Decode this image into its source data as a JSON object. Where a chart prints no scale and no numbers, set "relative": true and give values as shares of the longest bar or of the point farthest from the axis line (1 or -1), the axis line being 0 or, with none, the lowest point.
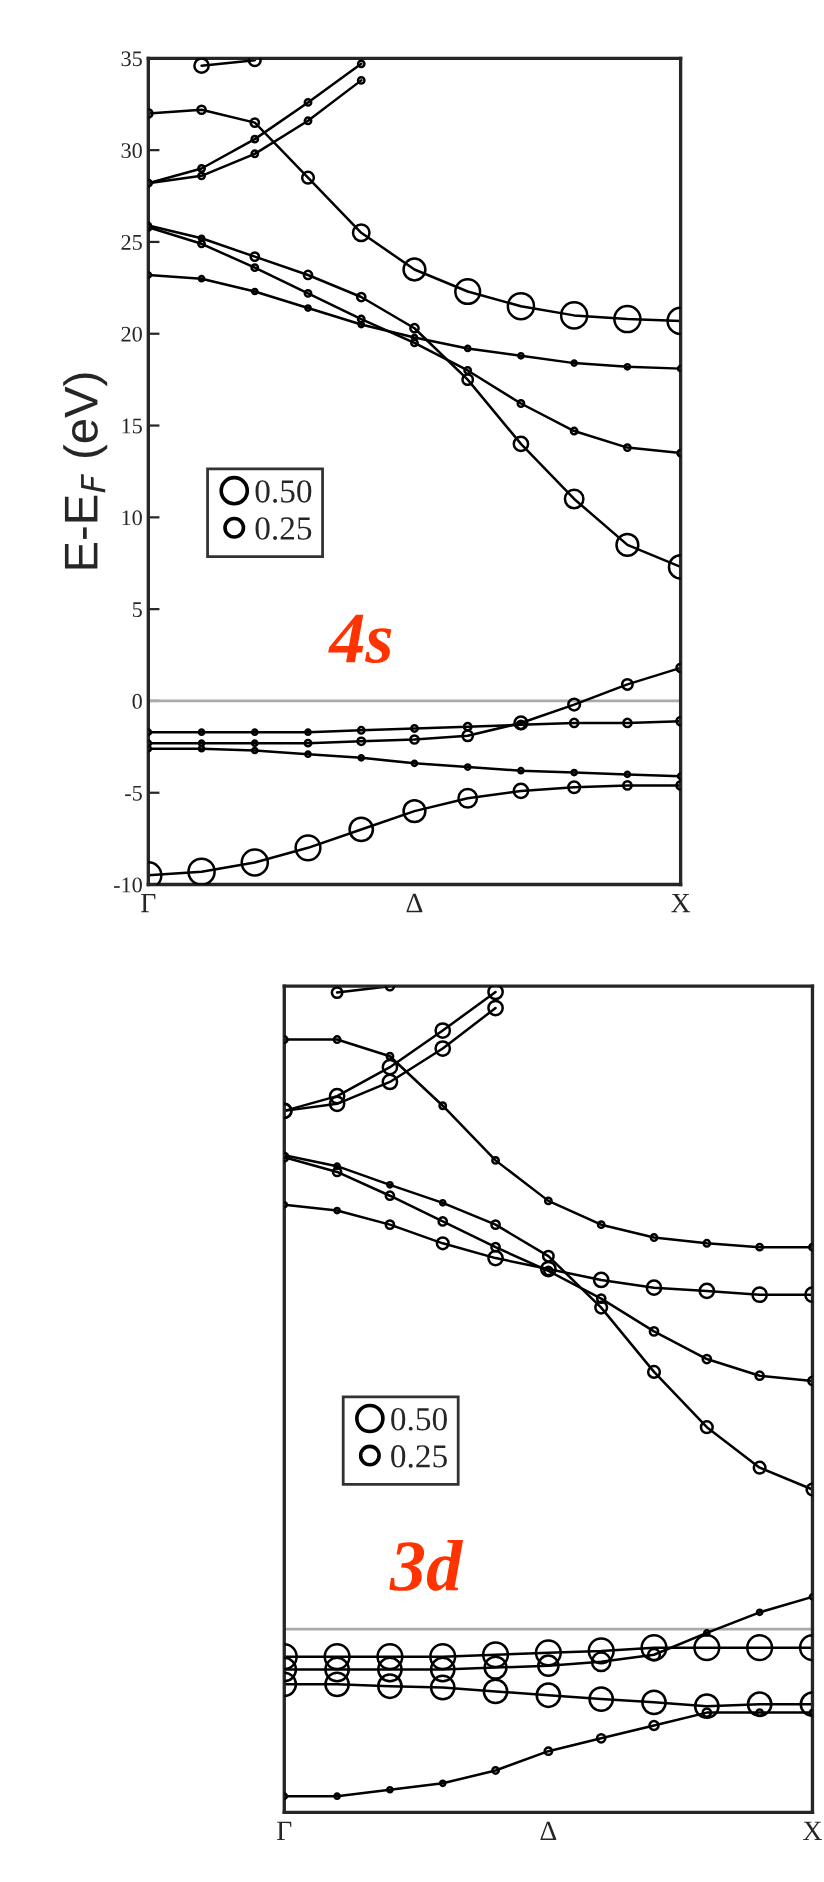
{
  "chart_data": [
    {
      "type": "bubble",
      "ylabel": "E-E$_{F}$ (eV)",
      "annotations": [
        "4s"
      ],
      "categories": [
        "Γ",
        null,
        null,
        null,
        null,
        "Δ",
        null,
        null,
        null,
        null,
        "X"
      ],
      "ylim": [
        -10,
        35
      ],
      "yticks": [
        -10,
        -5,
        0,
        5,
        10,
        15,
        20,
        25,
        30,
        35
      ],
      "ref_lines": [
        {
          "axis": "y",
          "value": 0,
          "color": "#aaaaaa"
        }
      ],
      "size_legend": [
        {
          "value": 0.5,
          "label": "0.50"
        },
        {
          "value": 0.25,
          "label": "0.25"
        }
      ],
      "marker": "circle",
      "series": [
        {
          "type": "line",
          "marker": "none",
          "color": "#000000",
          "values": [
            -9.5,
            -9.3,
            -8.8,
            -8.0,
            -7.0,
            -6.0,
            -5.3,
            -4.9,
            -4.7,
            -4.6,
            -4.6
          ]
        },
        {
          "type": "bubble",
          "color": "#000000",
          "values": [
            -9.5,
            -9.3,
            -8.8,
            -8.0,
            -7.0,
            -6.0,
            -5.3,
            -4.9,
            -4.7,
            -4.6,
            -4.6
          ],
          "sizes": [
            0.5,
            0.5,
            0.5,
            0.45,
            0.4,
            0.35,
            0.25,
            0.15,
            0.1,
            0.05,
            0.05
          ]
        },
        {
          "type": "line",
          "marker": "none",
          "color": "#000000",
          "values": [
            -2.6,
            -2.6,
            -2.7,
            -2.9,
            -3.1,
            -3.4,
            -3.6,
            -3.8,
            -3.9,
            -4.0,
            -4.1
          ]
        },
        {
          "type": "bubble",
          "color": "#000000",
          "values": [
            -2.6,
            -2.6,
            -2.7,
            -2.9,
            -3.1,
            -3.4,
            -3.6,
            -3.8,
            -3.9,
            -4.0,
            -4.1
          ],
          "sizes": [
            0.02,
            0.02,
            0.02,
            0.02,
            0.02,
            0.02,
            0.02,
            0.02,
            0.02,
            0.02,
            0.02
          ]
        },
        {
          "type": "line",
          "marker": "none",
          "color": "#000000",
          "values": [
            -1.7,
            -1.7,
            -1.7,
            -1.7,
            -1.6,
            -1.5,
            -1.4,
            -1.3,
            -1.2,
            -1.2,
            -1.1
          ]
        },
        {
          "type": "bubble",
          "color": "#000000",
          "values": [
            -1.7,
            -1.7,
            -1.7,
            -1.7,
            -1.6,
            -1.5,
            -1.4,
            -1.3,
            -1.2,
            -1.2,
            -1.1
          ],
          "sizes": [
            0.02,
            0.02,
            0.02,
            0.02,
            0.03,
            0.03,
            0.04,
            0.05,
            0.05,
            0.05,
            0.05
          ]
        },
        {
          "type": "line",
          "marker": "none",
          "color": "#000000",
          "values": [
            -2.3,
            -2.3,
            -2.3,
            -2.3,
            -2.2,
            -2.1,
            -1.9,
            -1.2,
            -0.2,
            0.9,
            1.8
          ]
        },
        {
          "type": "bubble",
          "color": "#000000",
          "values": [
            -2.3,
            -2.3,
            -2.3,
            -2.3,
            -2.2,
            -2.1,
            -1.9,
            -1.2,
            -0.2,
            0.9,
            1.8
          ],
          "sizes": [
            0.02,
            0.02,
            0.02,
            0.03,
            0.04,
            0.05,
            0.08,
            0.12,
            0.1,
            0.08,
            0.05
          ]
        },
        {
          "type": "line",
          "marker": "none",
          "color": "#000000",
          "values": [
            23.2,
            23.0,
            22.3,
            21.4,
            20.5,
            19.8,
            19.2,
            18.8,
            18.4,
            18.2,
            18.1
          ]
        },
        {
          "type": "bubble",
          "color": "#000000",
          "values": [
            23.2,
            23.0,
            22.3,
            21.4,
            20.5,
            19.8,
            19.2,
            18.8,
            18.4,
            18.2,
            18.1
          ],
          "sizes": [
            0.02,
            0.02,
            0.02,
            0.02,
            0.02,
            0.02,
            0.02,
            0.02,
            0.02,
            0.02,
            0.02
          ]
        },
        {
          "type": "line",
          "marker": "none",
          "color": "#000000",
          "values": [
            25.8,
            24.9,
            23.6,
            22.2,
            20.8,
            19.5,
            18.0,
            16.2,
            14.7,
            13.8,
            13.5
          ]
        },
        {
          "type": "bubble",
          "color": "#000000",
          "values": [
            25.8,
            24.9,
            23.6,
            22.2,
            20.8,
            19.5,
            18.0,
            16.2,
            14.7,
            13.8,
            13.5
          ],
          "sizes": [
            0.03,
            0.03,
            0.03,
            0.03,
            0.03,
            0.03,
            0.03,
            0.03,
            0.03,
            0.03,
            0.03
          ]
        },
        {
          "type": "line",
          "marker": "none",
          "color": "#000000",
          "values": [
            25.9,
            25.2,
            24.2,
            23.2,
            22.0,
            20.3,
            17.5,
            14.0,
            11.0,
            8.5,
            7.3
          ]
        },
        {
          "type": "bubble",
          "color": "#000000",
          "values": [
            25.9,
            25.2,
            24.2,
            23.2,
            22.0,
            20.3,
            17.5,
            14.0,
            11.0,
            8.5,
            7.3
          ],
          "sizes": [
            0.02,
            0.02,
            0.05,
            0.05,
            0.05,
            0.05,
            0.08,
            0.15,
            0.25,
            0.35,
            0.4
          ]
        },
        {
          "type": "line",
          "marker": "none",
          "color": "#000000",
          "values": [
            32.0,
            32.2,
            31.5,
            28.5,
            25.5,
            23.5,
            22.3,
            21.5,
            21.0,
            20.8,
            20.7
          ]
        },
        {
          "type": "bubble",
          "color": "#000000",
          "values": [
            32.0,
            32.2,
            31.5,
            28.5,
            25.5,
            23.5,
            22.3,
            21.5,
            21.0,
            20.8,
            20.7
          ],
          "sizes": [
            0.05,
            0.05,
            0.05,
            0.1,
            0.2,
            0.35,
            0.45,
            0.5,
            0.5,
            0.5,
            0.5
          ]
        },
        {
          "type": "line",
          "marker": "none",
          "color": "#000000",
          "values": [
            28.2,
            29.0,
            30.6,
            32.6,
            34.7,
            null,
            null,
            null,
            null,
            null,
            null
          ]
        },
        {
          "type": "bubble",
          "color": "#000000",
          "values": [
            28.2,
            29.0,
            30.6,
            32.6,
            34.7,
            null,
            null,
            null,
            null,
            null,
            null
          ],
          "sizes": [
            0.03,
            0.03,
            0.03,
            0.03,
            0.03,
            null,
            null,
            null,
            null,
            null,
            null
          ]
        },
        {
          "type": "line",
          "marker": "none",
          "color": "#000000",
          "values": [
            28.2,
            28.6,
            29.8,
            31.6,
            33.8,
            null,
            null,
            null,
            null,
            null,
            null
          ]
        },
        {
          "type": "bubble",
          "color": "#000000",
          "values": [
            28.2,
            28.6,
            29.8,
            31.6,
            33.8,
            null,
            null,
            null,
            null,
            null,
            null
          ],
          "sizes": [
            0.03,
            0.03,
            0.03,
            0.03,
            0.03,
            null,
            null,
            null,
            null,
            null,
            null
          ]
        },
        {
          "type": "line",
          "marker": "none",
          "color": "#000000",
          "values": [
            null,
            34.6,
            34.9,
            null,
            null,
            null,
            null,
            null,
            null,
            null,
            null
          ]
        },
        {
          "type": "bubble",
          "color": "#000000",
          "values": [
            null,
            34.6,
            34.9,
            null,
            null,
            null,
            null,
            null,
            null,
            null,
            null
          ],
          "sizes": [
            null,
            0.15,
            0.1,
            null,
            null,
            null,
            null,
            null,
            null,
            null,
            null
          ]
        }
      ]
    },
    {
      "type": "bubble",
      "relative": true,
      "annotations": [
        "3d"
      ],
      "categories": [
        "Γ",
        null,
        null,
        null,
        null,
        "Δ",
        null,
        null,
        null,
        null,
        "X"
      ],
      "ref_lines": [
        {
          "axis": "y",
          "value": 0,
          "color": "#aaaaaa"
        }
      ],
      "size_legend": [
        {
          "value": 0.5,
          "label": "0.50"
        },
        {
          "value": 0.25,
          "label": "0.25"
        }
      ],
      "marker": "circle",
      "series": [
        {
          "type": "line",
          "marker": "none",
          "color": "#000000",
          "values": [
            -0.26,
            -0.26,
            -0.25,
            -0.24,
            -0.22,
            -0.19,
            -0.17,
            -0.15,
            -0.13,
            -0.13,
            -0.13
          ]
        },
        {
          "type": "bubble",
          "color": "#000000",
          "values": [
            -0.26,
            -0.26,
            -0.25,
            -0.24,
            -0.22,
            -0.19,
            -0.17,
            -0.15,
            -0.13,
            -0.13,
            -0.13
          ],
          "sizes": [
            0.02,
            0.02,
            0.02,
            0.02,
            0.03,
            0.04,
            0.05,
            0.06,
            0.05,
            0.03,
            0.02
          ]
        },
        {
          "type": "line",
          "marker": "none",
          "color": "#000000",
          "values": [
            -0.086,
            -0.086,
            -0.089,
            -0.091,
            -0.097,
            -0.103,
            -0.109,
            -0.114,
            -0.12,
            -0.117,
            -0.117
          ]
        },
        {
          "type": "bubble",
          "color": "#000000",
          "values": [
            -0.086,
            -0.086,
            -0.089,
            -0.091,
            -0.097,
            -0.103,
            -0.109,
            -0.114,
            -0.12,
            -0.117,
            -0.117
          ],
          "sizes": [
            0.4,
            0.4,
            0.4,
            0.4,
            0.4,
            0.4,
            0.4,
            0.4,
            0.4,
            0.4,
            0.4
          ]
        },
        {
          "type": "line",
          "marker": "none",
          "color": "#000000",
          "values": [
            -0.043,
            -0.043,
            -0.043,
            -0.043,
            -0.04,
            -0.037,
            -0.034,
            -0.029,
            -0.029,
            -0.029,
            -0.029
          ]
        },
        {
          "type": "bubble",
          "color": "#000000",
          "values": [
            -0.043,
            -0.043,
            -0.043,
            -0.043,
            -0.04,
            -0.037,
            -0.034,
            -0.029,
            -0.029,
            -0.029,
            -0.029
          ],
          "sizes": [
            0.45,
            0.45,
            0.45,
            0.45,
            0.45,
            0.45,
            0.45,
            0.45,
            0.45,
            0.45,
            0.45
          ]
        },
        {
          "type": "line",
          "marker": "none",
          "color": "#000000",
          "values": [
            -0.063,
            -0.063,
            -0.063,
            -0.063,
            -0.06,
            -0.057,
            -0.051,
            -0.04,
            -0.006,
            0.026,
            0.05
          ]
        },
        {
          "type": "bubble",
          "color": "#000000",
          "values": [
            -0.063,
            -0.063,
            -0.063,
            -0.063,
            -0.06,
            -0.057,
            -0.051,
            -0.04,
            -0.006,
            0.026,
            0.05
          ],
          "sizes": [
            0.4,
            0.4,
            0.4,
            0.4,
            0.35,
            0.3,
            0.25,
            0.1,
            0.02,
            0.02,
            0.02
          ]
        },
        {
          "type": "line",
          "marker": "none",
          "color": "#000000",
          "values": [
            0.66,
            0.651,
            0.629,
            0.6,
            0.577,
            0.56,
            0.543,
            0.531,
            0.526,
            0.52,
            0.52
          ]
        },
        {
          "type": "bubble",
          "color": "#000000",
          "values": [
            0.66,
            0.651,
            0.629,
            0.6,
            0.577,
            0.56,
            0.543,
            0.531,
            0.526,
            0.52,
            0.52
          ],
          "sizes": [
            0.02,
            0.02,
            0.05,
            0.1,
            0.15,
            0.15,
            0.15,
            0.15,
            0.15,
            0.15,
            0.15
          ]
        },
        {
          "type": "line",
          "marker": "none",
          "color": "#000000",
          "values": [
            0.734,
            0.711,
            0.674,
            0.634,
            0.594,
            0.557,
            0.514,
            0.463,
            0.42,
            0.394,
            0.386
          ]
        },
        {
          "type": "bubble",
          "color": "#000000",
          "values": [
            0.734,
            0.711,
            0.674,
            0.634,
            0.594,
            0.557,
            0.514,
            0.463,
            0.42,
            0.394,
            0.386
          ],
          "sizes": [
            0.05,
            0.05,
            0.05,
            0.05,
            0.05,
            0.05,
            0.05,
            0.05,
            0.05,
            0.05,
            0.05
          ]
        },
        {
          "type": "line",
          "marker": "none",
          "color": "#000000",
          "values": [
            0.737,
            0.72,
            0.691,
            0.663,
            0.629,
            0.58,
            0.5,
            0.4,
            0.314,
            0.251,
            0.217
          ]
        },
        {
          "type": "bubble",
          "color": "#000000",
          "values": [
            0.737,
            0.72,
            0.691,
            0.663,
            0.629,
            0.58,
            0.5,
            0.4,
            0.314,
            0.251,
            0.217
          ],
          "sizes": [
            0.02,
            0.02,
            0.02,
            0.02,
            0.05,
            0.08,
            0.1,
            0.1,
            0.1,
            0.1,
            0.1
          ]
        },
        {
          "type": "line",
          "marker": "none",
          "color": "#000000",
          "values": [
            0.917,
            0.917,
            0.891,
            0.814,
            0.729,
            0.666,
            0.629,
            0.609,
            0.6,
            0.594,
            0.594
          ]
        },
        {
          "type": "bubble",
          "color": "#000000",
          "values": [
            0.917,
            0.917,
            0.891,
            0.814,
            0.729,
            0.666,
            0.629,
            0.609,
            0.6,
            0.594,
            0.594
          ],
          "sizes": [
            0.03,
            0.03,
            0.03,
            0.03,
            0.03,
            0.03,
            0.03,
            0.03,
            0.03,
            0.03,
            0.03
          ]
        },
        {
          "type": "line",
          "marker": "none",
          "color": "#000000",
          "values": [
            0.806,
            0.829,
            0.874,
            0.931,
            0.991,
            null,
            null,
            null,
            null,
            null,
            null
          ]
        },
        {
          "type": "bubble",
          "color": "#000000",
          "values": [
            0.806,
            0.829,
            0.874,
            0.931,
            0.991,
            null,
            null,
            null,
            null,
            null,
            null
          ],
          "sizes": [
            0.15,
            0.15,
            0.15,
            0.15,
            0.15,
            null,
            null,
            null,
            null,
            null,
            null
          ]
        },
        {
          "type": "line",
          "marker": "none",
          "color": "#000000",
          "values": [
            0.806,
            0.817,
            0.851,
            0.903,
            0.966,
            null,
            null,
            null,
            null,
            null,
            null
          ]
        },
        {
          "type": "bubble",
          "color": "#000000",
          "values": [
            0.806,
            0.817,
            0.851,
            0.903,
            0.966,
            null,
            null,
            null,
            null,
            null,
            null
          ],
          "sizes": [
            0.15,
            0.15,
            0.15,
            0.15,
            0.15,
            null,
            null,
            null,
            null,
            null,
            null
          ]
        },
        {
          "type": "line",
          "marker": "none",
          "color": "#000000",
          "values": [
            null,
            0.99,
            1.0,
            null,
            null,
            null,
            null,
            null,
            null,
            null,
            null
          ]
        },
        {
          "type": "bubble",
          "color": "#000000",
          "values": [
            null,
            0.99,
            1.0,
            null,
            null,
            null,
            null,
            null,
            null,
            null,
            null
          ],
          "sizes": [
            null,
            0.08,
            0.05,
            null,
            null,
            null,
            null,
            null,
            null,
            null,
            null
          ]
        }
      ]
    }
  ]
}
